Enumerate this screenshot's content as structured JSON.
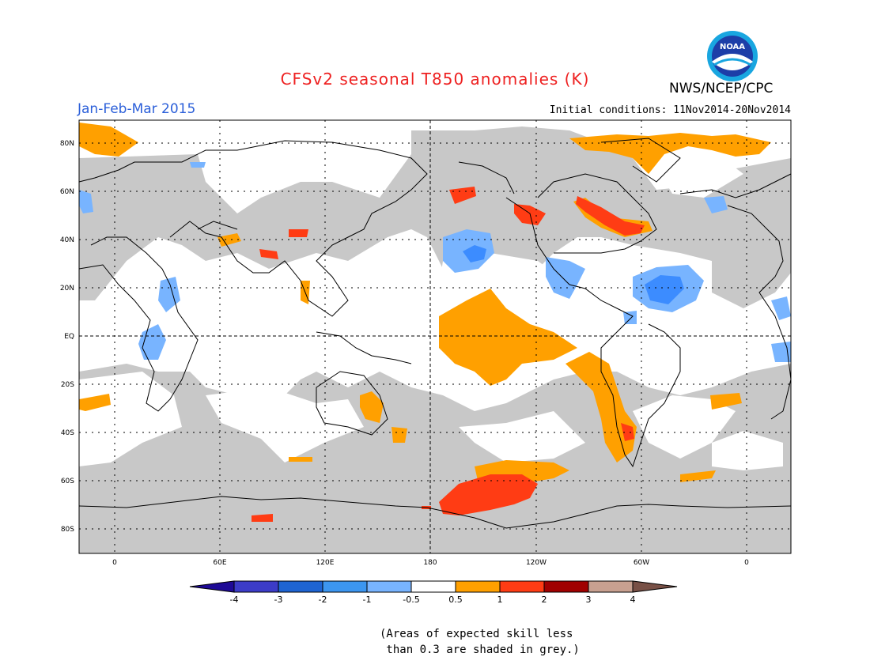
{
  "title": "CFSv2 seasonal T850 anomalies (K)",
  "agency": "NWS/NCEP/CPC",
  "period": "Jan-Feb-Mar 2015",
  "initial_conditions": "Initial conditions: 11Nov2014-20Nov2014",
  "note": "(Areas of expected skill less\n than 0.3 are shaded in grey.)",
  "logo_text": "NOAA",
  "colors": {
    "title": "#ee2020",
    "period": "#2b5fd9",
    "grey_low_skill": "#c8c8c8",
    "anom_0_5_to_1": "#ffa000",
    "anom_1_to_2": "#ff3c14",
    "anom_m1_to_m0_5": "#78b4ff",
    "anom_m2_to_m1": "#3c8cff"
  },
  "map": {
    "lat_labels": [
      "80N",
      "60N",
      "40N",
      "20N",
      "EQ",
      "20S",
      "40S",
      "60S",
      "80S"
    ],
    "lon_labels": [
      "0",
      "60E",
      "120E",
      "180",
      "120W",
      "60W",
      "0"
    ]
  },
  "colorbar": {
    "labels": [
      "-4",
      "-3",
      "-2",
      "-1",
      "-0.5",
      "0.5",
      "1",
      "2",
      "3",
      "4"
    ],
    "colors": [
      "#1e0a96",
      "#3c3cc8",
      "#1e64d2",
      "#3c96f0",
      "#78b4ff",
      "#ffffff",
      "#ffa000",
      "#ff3c14",
      "#a00000",
      "#c8a090",
      "#785046"
    ]
  }
}
